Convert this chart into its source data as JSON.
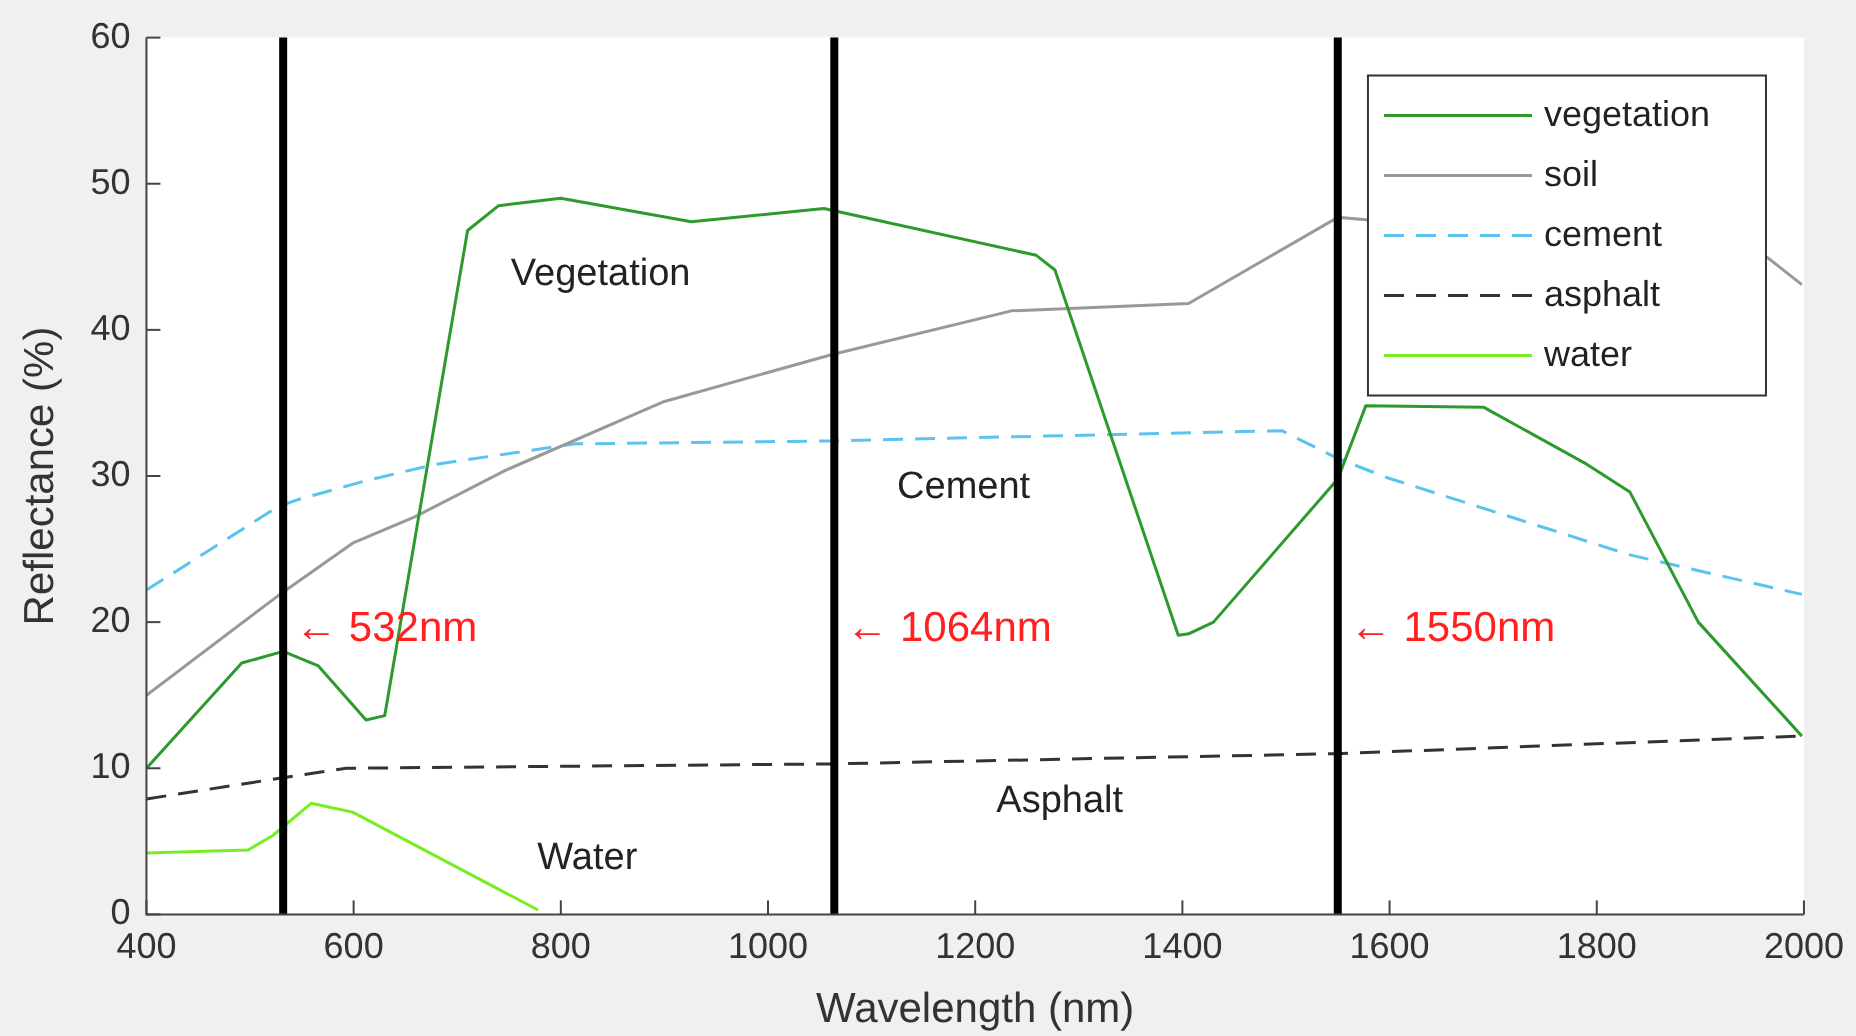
{
  "chart_data": {
    "type": "line",
    "xlabel": "Wavelength (nm)",
    "ylabel": "Reflectance (%)",
    "xlim": [
      400,
      2000
    ],
    "ylim": [
      0,
      60
    ],
    "xticks": [
      400,
      600,
      800,
      1000,
      1200,
      1400,
      1600,
      1800,
      2000
    ],
    "yticks": [
      0,
      10,
      20,
      30,
      40,
      50,
      60
    ],
    "grid": false,
    "legend": "top right",
    "marker": "none",
    "series": [
      {
        "name": "vegetation",
        "color": "#2e9a2e",
        "line_style": "solid",
        "x": [
          400,
          492,
          532,
          566,
          612,
          630,
          710,
          740,
          800,
          926,
          1054,
          1259,
          1277,
          1396,
          1406,
          1430,
          1550,
          1577,
          1691,
          1788,
          1832,
          1898,
          1998
        ],
        "values": [
          10,
          17.2,
          18,
          17,
          13.3,
          13.6,
          46.8,
          48.5,
          49,
          47.4,
          48.3,
          45.1,
          44.1,
          19.1,
          19.2,
          20,
          29.8,
          34.8,
          34.7,
          30.9,
          28.9,
          20,
          12.2
        ]
      },
      {
        "name": "soil",
        "color": "#999999",
        "line_style": "solid",
        "x": [
          400,
          527,
          599,
          659,
          747,
          900,
          1061,
          1235,
          1406,
          1550,
          1962,
          1998
        ],
        "values": [
          15,
          21.8,
          25.4,
          27.2,
          30.4,
          35.1,
          38.3,
          41.3,
          41.8,
          47.7,
          45.1,
          43.1
        ]
      },
      {
        "name": "cement",
        "color": "#5bc4ee",
        "line_style": "dashed",
        "x": [
          400,
          527,
          547,
          613,
          679,
          814,
          1061,
          1496,
          1550,
          1597,
          1832,
          1998
        ],
        "values": [
          22.2,
          27.9,
          28.4,
          29.7,
          30.8,
          32.2,
          32.4,
          33.1,
          31.2,
          29.9,
          24.6,
          21.9
        ]
      },
      {
        "name": "asphalt",
        "color": "#333333",
        "line_style": "dashed",
        "x": [
          400,
          527,
          593,
          1061,
          1550,
          1998
        ],
        "values": [
          7.9,
          9.3,
          10,
          10.3,
          11,
          12.2
        ]
      },
      {
        "name": "water",
        "color": "#77ee22",
        "line_style": "solid",
        "x": [
          400,
          498,
          522,
          559,
          599,
          778
        ],
        "values": [
          4.2,
          4.4,
          5.4,
          7.6,
          7,
          0.3
        ]
      }
    ],
    "ref_lines": [
      {
        "axis": "x",
        "value": 532,
        "label": "← 532nm",
        "color": "#000000"
      },
      {
        "axis": "x",
        "value": 1064,
        "label": "← 1064nm",
        "color": "#000000"
      },
      {
        "axis": "x",
        "value": 1550,
        "label": "← 1550nm",
        "color": "#000000"
      }
    ],
    "annotations": [
      "Vegetation",
      "Cement",
      "Asphalt",
      "Water"
    ]
  }
}
